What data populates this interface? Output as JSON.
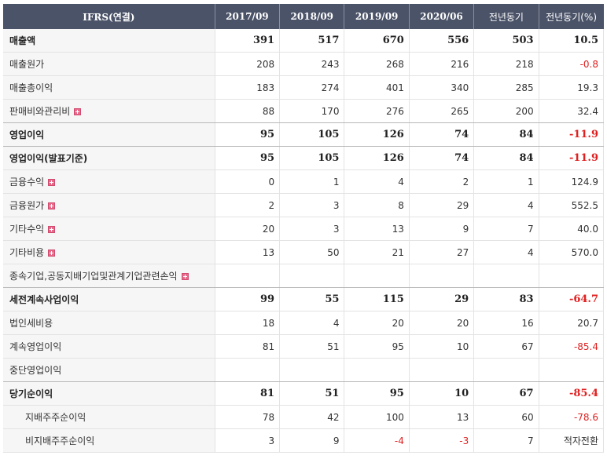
{
  "header": {
    "title": "IFRS(연결)",
    "columns": [
      "2017/09",
      "2018/09",
      "2019/09",
      "2020/06",
      "전년동기",
      "전년동기(%)"
    ]
  },
  "rows": [
    {
      "label": "매출액",
      "values": [
        "391",
        "517",
        "670",
        "556",
        "503",
        "10.5"
      ]
    },
    {
      "label": "매출원가",
      "values": [
        "208",
        "243",
        "268",
        "216",
        "218",
        "-0.8"
      ]
    },
    {
      "label": "매출총이익",
      "values": [
        "183",
        "274",
        "401",
        "340",
        "285",
        "19.3"
      ]
    },
    {
      "label": "판매비와관리비",
      "values": [
        "88",
        "170",
        "276",
        "265",
        "200",
        "32.4"
      ]
    },
    {
      "label": "영업이익",
      "values": [
        "95",
        "105",
        "126",
        "74",
        "84",
        "-11.9"
      ]
    },
    {
      "label": "영업이익(발표기준)",
      "values": [
        "95",
        "105",
        "126",
        "74",
        "84",
        "-11.9"
      ]
    },
    {
      "label": "금융수익",
      "values": [
        "0",
        "1",
        "4",
        "2",
        "1",
        "124.9"
      ]
    },
    {
      "label": "금융원가",
      "values": [
        "2",
        "3",
        "8",
        "29",
        "4",
        "552.5"
      ]
    },
    {
      "label": "기타수익",
      "values": [
        "20",
        "3",
        "13",
        "9",
        "7",
        "40.0"
      ]
    },
    {
      "label": "기타비용",
      "values": [
        "13",
        "50",
        "21",
        "27",
        "4",
        "570.0"
      ]
    },
    {
      "label": "종속기업,공동지배기업및관계기업관련손익",
      "values": [
        "",
        "",
        "",
        "",
        "",
        ""
      ]
    },
    {
      "label": "세전계속사업이익",
      "values": [
        "99",
        "55",
        "115",
        "29",
        "83",
        "-64.7"
      ]
    },
    {
      "label": "법인세비용",
      "values": [
        "18",
        "4",
        "20",
        "20",
        "16",
        "20.7"
      ]
    },
    {
      "label": "계속영업이익",
      "values": [
        "81",
        "51",
        "95",
        "10",
        "67",
        "-85.4"
      ]
    },
    {
      "label": "중단영업이익",
      "values": [
        "",
        "",
        "",
        "",
        "",
        ""
      ]
    },
    {
      "label": "당기순이익",
      "values": [
        "81",
        "51",
        "95",
        "10",
        "67",
        "-85.4"
      ]
    },
    {
      "label": "지배주주순이익",
      "values": [
        "78",
        "42",
        "100",
        "13",
        "60",
        "-78.6"
      ]
    },
    {
      "label": "비지배주주순이익",
      "values": [
        "3",
        "9",
        "-4",
        "-3",
        "7",
        "적자전환"
      ]
    }
  ],
  "colors": {
    "header_bg": "#4b5368",
    "negative": "#e02020",
    "label_bg": "#f6f6f6",
    "expand_icon": "#e86a8a"
  }
}
